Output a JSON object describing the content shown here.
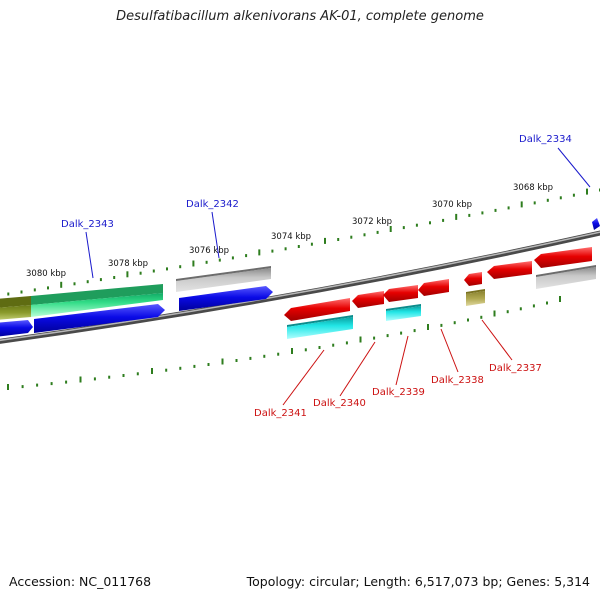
{
  "title": "Desulfatibacillum alkenivorans AK-01, complete genome",
  "footer": {
    "accession": "Accession: NC_011768",
    "topology": "Topology: circular; Length: 6,517,073 bp; Genes: 5,314"
  },
  "colors": {
    "backbone": "#7a7a7a",
    "tick": "#2e7d1e",
    "label_blue": "#1a1acc",
    "label_red": "#cc1111",
    "gene_red": "#e60000",
    "gene_blue": "#0a0ae6",
    "gene_gray": "#a8a8a8",
    "gene_cyan": "#22e6e6",
    "gene_green": "#33dd88",
    "gene_olive": "#8a9a2a",
    "gene_khaki": "#b0a850"
  },
  "scale_labels": [
    {
      "text": "3068 kbp"
    },
    {
      "text": "3070 kbp"
    },
    {
      "text": "3072 kbp"
    },
    {
      "text": "3074 kbp"
    },
    {
      "text": "3076 kbp"
    },
    {
      "text": "3078 kbp"
    },
    {
      "text": "3080 kbp"
    }
  ],
  "gene_labels": [
    {
      "text": "Dalk_2334",
      "strand": "plus"
    },
    {
      "text": "Dalk_2342",
      "strand": "plus"
    },
    {
      "text": "Dalk_2343",
      "strand": "plus"
    },
    {
      "text": "Dalk_2337",
      "strand": "minus"
    },
    {
      "text": "Dalk_2338",
      "strand": "minus"
    },
    {
      "text": "Dalk_2339",
      "strand": "minus"
    },
    {
      "text": "Dalk_2340",
      "strand": "minus"
    },
    {
      "text": "Dalk_2341",
      "strand": "minus"
    }
  ]
}
